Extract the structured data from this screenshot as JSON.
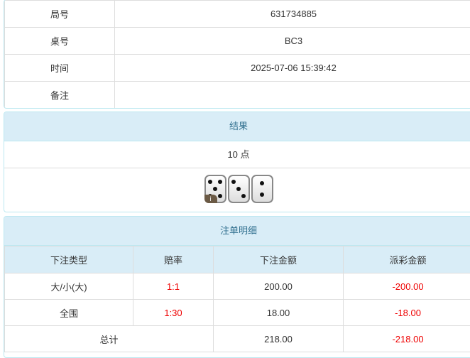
{
  "info": {
    "rows": [
      {
        "label": "局号",
        "value": "631734885"
      },
      {
        "label": "桌号",
        "value": "BC3"
      },
      {
        "label": "时间",
        "value": "2025-07-06 15:39:42"
      },
      {
        "label": "备注",
        "value": ""
      }
    ]
  },
  "result": {
    "title": "结果",
    "points": "10 点",
    "dice": [
      5,
      3,
      2
    ],
    "info_badge": "i"
  },
  "bets": {
    "title": "注单明细",
    "headers": [
      "下注类型",
      "赔率",
      "下注金额",
      "派彩金额"
    ],
    "rows": [
      {
        "type": "大/小(大)",
        "odds": "1:1",
        "amount": "200.00",
        "payout": "-200.00"
      },
      {
        "type": "全围",
        "odds": "1:30",
        "amount": "18.00",
        "payout": "-18.00"
      }
    ],
    "total": {
      "label": "总计",
      "amount": "218.00",
      "payout": "-218.00"
    }
  },
  "colors": {
    "negative": "#ee0000",
    "header_bg": "#d9edf7",
    "header_text": "#31708f"
  }
}
